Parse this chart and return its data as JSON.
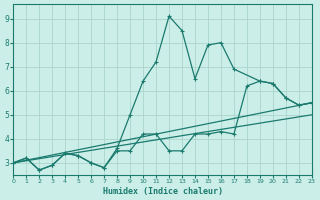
{
  "xlabel": "Humidex (Indice chaleur)",
  "line_color": "#1a7a6e",
  "bg_color": "#cceee8",
  "grid_color": "#aad4cc",
  "xlim": [
    0,
    23
  ],
  "ylim": [
    2.5,
    9.6
  ],
  "yticks": [
    3,
    4,
    5,
    6,
    7,
    8,
    9
  ],
  "xtick_labels": [
    "0",
    "1",
    "2",
    "3",
    "4",
    "5",
    "6",
    "7",
    "8",
    "9",
    "10",
    "11",
    "12",
    "13",
    "14",
    "15",
    "16",
    "17",
    "18",
    "19",
    "20",
    "21",
    "22",
    "23"
  ],
  "spike_x": [
    0,
    1,
    2,
    3,
    4,
    5,
    6,
    7,
    8,
    9,
    10,
    11,
    12,
    13,
    14,
    15,
    16,
    17,
    19,
    20,
    21,
    22,
    23
  ],
  "spike_y": [
    3.0,
    3.2,
    2.7,
    2.9,
    3.4,
    3.3,
    3.0,
    2.8,
    3.6,
    5.0,
    6.4,
    7.2,
    9.1,
    8.5,
    6.5,
    7.9,
    8.0,
    6.9,
    6.4,
    6.3,
    5.7,
    5.4,
    5.5
  ],
  "low_x": [
    0,
    1,
    2,
    3,
    4,
    5,
    6,
    7,
    8,
    9,
    10,
    11,
    12,
    13,
    14,
    15,
    16,
    17,
    18,
    19,
    20,
    21,
    22,
    23
  ],
  "low_y": [
    3.0,
    3.2,
    2.7,
    2.9,
    3.4,
    3.3,
    3.0,
    2.8,
    3.5,
    3.5,
    4.2,
    4.2,
    3.5,
    3.5,
    4.2,
    4.2,
    4.3,
    4.2,
    6.2,
    6.4,
    6.3,
    5.7,
    5.4,
    5.5
  ],
  "trend1_x": [
    0,
    23
  ],
  "trend1_y": [
    3.0,
    5.5
  ],
  "trend2_x": [
    0,
    23
  ],
  "trend2_y": [
    3.0,
    5.0
  ],
  "line_width": 0.9,
  "marker_size": 2.5
}
